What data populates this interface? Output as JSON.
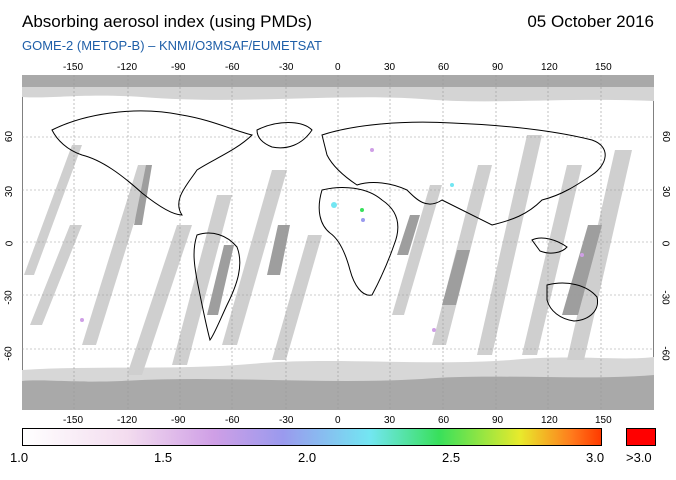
{
  "header": {
    "title": "Absorbing aerosol index (using PMDs)",
    "date": "05 October 2016",
    "subtitle": "GOME-2 (METOP-B)  –  KNMI/O3MSAF/EUMETSAT"
  },
  "map": {
    "lon_ticks": [
      "-150",
      "-120",
      "-90",
      "-60",
      "-30",
      "0",
      "30",
      "60",
      "90",
      "120",
      "150"
    ],
    "lat_ticks_left": [
      "60",
      "30",
      "0",
      "-30",
      "-60"
    ],
    "lat_ticks_right": [
      "60",
      "30",
      "0",
      "-30",
      "-60"
    ],
    "swath_color": "#bdbdbd",
    "missing_color": "#a9a9a9"
  },
  "colorbar": {
    "labels": [
      "1.0",
      "1.5",
      "2.0",
      "2.5",
      "3.0"
    ],
    "over_label": ">3.0",
    "over_color": "#ff0000"
  }
}
